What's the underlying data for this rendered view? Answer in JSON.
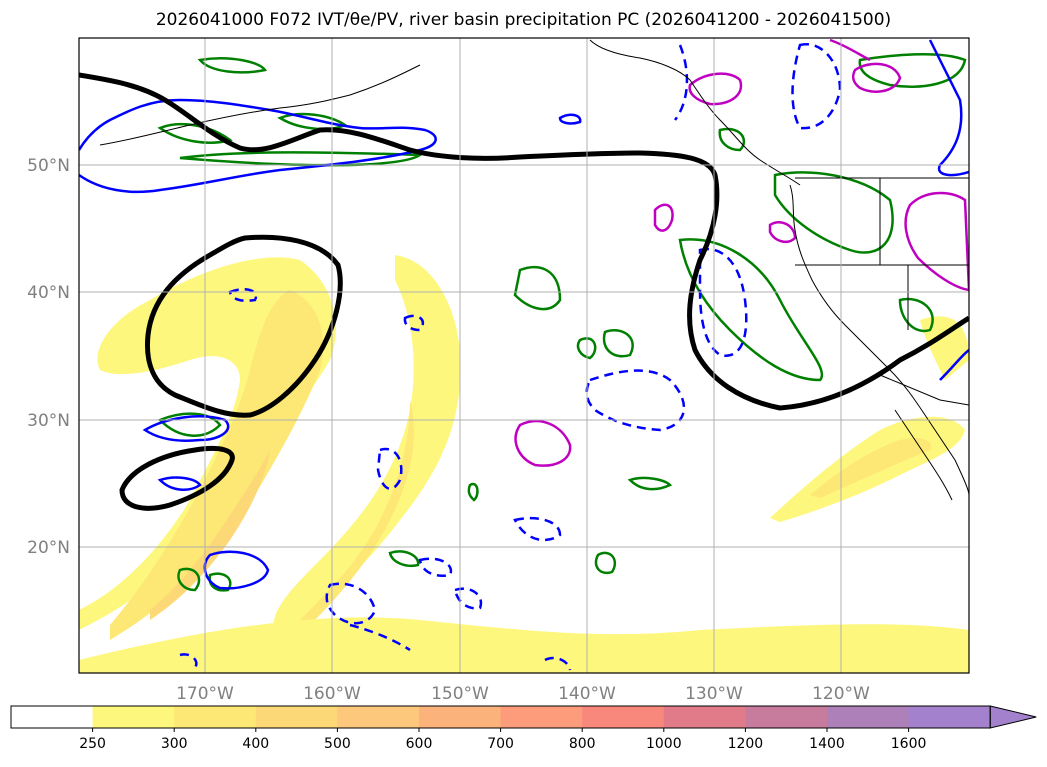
{
  "title": "2026041000 F072 IVT/θe/PV, river basin precipitation PC (2026041200 - 2026041500)",
  "map": {
    "lat_labels": [
      "50°N",
      "40°N",
      "30°N",
      "20°N"
    ],
    "lon_labels": [
      "170°W",
      "160°W",
      "150°W",
      "140°W",
      "130°W",
      "120°W"
    ],
    "extent": {
      "lon_min": -180,
      "lon_max": -110,
      "lat_min": 10,
      "lat_max": 60
    }
  },
  "colorbar": {
    "levels": [
      "250",
      "300",
      "400",
      "500",
      "600",
      "700",
      "800",
      "1000",
      "1200",
      "1400",
      "1600"
    ],
    "colors": [
      "#ffffff",
      "#fef77d",
      "#fde775",
      "#fdd877",
      "#fdc87c",
      "#fcb27b",
      "#fc9c7a",
      "#f9887c",
      "#e17b8a",
      "#c77c9e",
      "#ae80b9",
      "#a381cc"
    ],
    "extend": "max"
  },
  "contour_colors": {
    "pv_line": "#000000",
    "theta_e_blue": "#0000ff",
    "precip_green": "#008000",
    "precip_magenta": "#c000c0",
    "coast": "#000000"
  }
}
